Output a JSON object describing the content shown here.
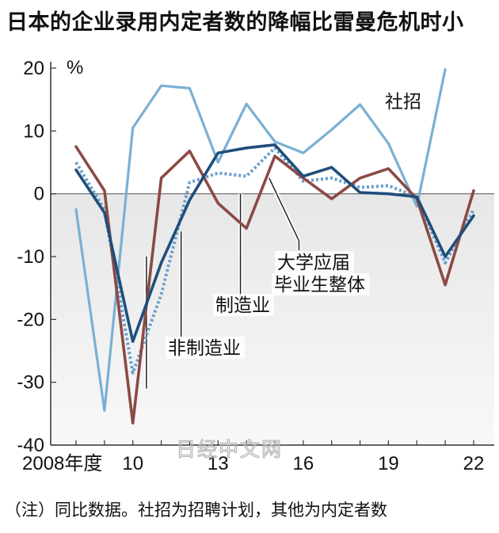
{
  "title": "日本的企业录用内定者数的降幅比雷曼危机时小",
  "note": "（注）同比数据。社招为招聘计划，其他为内定者数",
  "watermark": "日经中文网",
  "chart_data": {
    "type": "line",
    "unit": "%",
    "x": [
      2008,
      2009,
      2010,
      2011,
      2012,
      2013,
      2014,
      2015,
      2016,
      2017,
      2018,
      2019,
      2020,
      2021,
      2022
    ],
    "x_tick_labels": [
      {
        "x": 2008,
        "label": "2008年度"
      },
      {
        "x": 2010,
        "label": "10"
      },
      {
        "x": 2013,
        "label": "13"
      },
      {
        "x": 2016,
        "label": "16"
      },
      {
        "x": 2019,
        "label": "19"
      },
      {
        "x": 2022,
        "label": "22"
      }
    ],
    "ylim": [
      -40,
      20
    ],
    "y_ticks": [
      20,
      10,
      0,
      -10,
      -20,
      -30,
      -40
    ],
    "grid": false,
    "series": [
      {
        "name": "社招",
        "color": "#7ab0d4",
        "style": "solid",
        "values": [
          -2.5,
          -34.5,
          10.5,
          17.2,
          16.8,
          5.0,
          14.3,
          8.3,
          6.5,
          10.2,
          14.2,
          8.0,
          -2.0,
          19.8,
          null
        ]
      },
      {
        "name": "非制造业",
        "color": "#1f4e7a",
        "style": "solid",
        "values": [
          3.8,
          -3.0,
          -23.5,
          -11.0,
          -1.0,
          6.5,
          7.3,
          7.8,
          2.8,
          4.2,
          0.2,
          0.0,
          -0.5,
          -10.0,
          -3.5
        ]
      },
      {
        "name": "大学应届毕业生整体",
        "color": "#6a9fcc",
        "style": "dotted",
        "values": [
          5.0,
          -2.5,
          -28.5,
          -16.0,
          1.8,
          3.3,
          2.8,
          7.3,
          2.0,
          2.5,
          1.0,
          1.3,
          -0.5,
          -11.0,
          -2.5
        ]
      },
      {
        "name": "制造业",
        "color": "#8b4a44",
        "style": "solid",
        "values": [
          7.5,
          0.5,
          -36.5,
          2.5,
          6.8,
          -1.5,
          -5.5,
          6.0,
          2.5,
          -0.8,
          2.5,
          4.0,
          -0.8,
          -14.5,
          0.5
        ]
      }
    ],
    "annotations": [
      {
        "text": "社招",
        "series": "社招"
      },
      {
        "text": "大学应届",
        "series": "大学应届毕业生整体"
      },
      {
        "text": "毕业生整体",
        "series": "大学应届毕业生整体"
      },
      {
        "text": "制造业",
        "series": "制造业"
      },
      {
        "text": "非制造业",
        "series": "非制造业"
      }
    ]
  }
}
